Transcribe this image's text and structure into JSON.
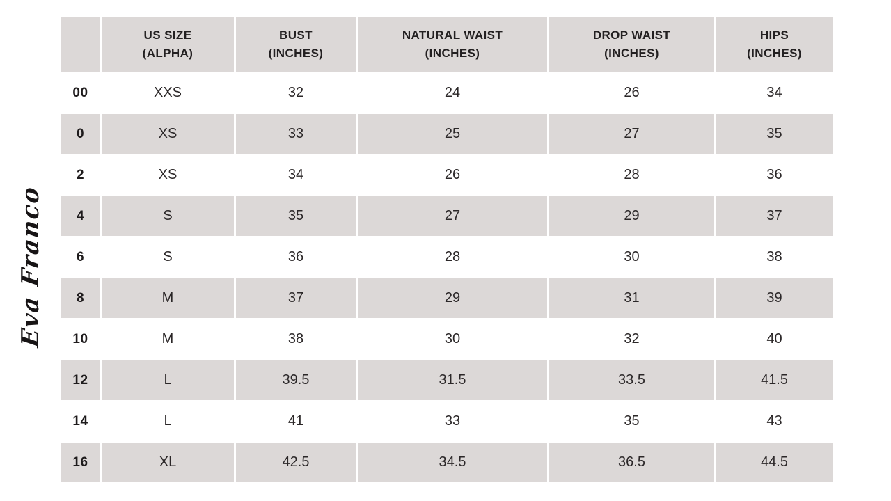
{
  "brand": {
    "logo_text": "Eva Franco"
  },
  "chart_data": {
    "type": "table",
    "headers": [
      {
        "l1": "",
        "l2": ""
      },
      {
        "l1": "US SIZE",
        "l2": "(ALPHA)"
      },
      {
        "l1": "BUST",
        "l2": "(INCHES)"
      },
      {
        "l1": "NATURAL WAIST",
        "l2": "(INCHES)"
      },
      {
        "l1": "DROP WAIST",
        "l2": "(INCHES)"
      },
      {
        "l1": "HIPS",
        "l2": "(INCHES)"
      }
    ],
    "rows": [
      [
        "00",
        "XXS",
        "32",
        "24",
        "26",
        "34"
      ],
      [
        "0",
        "XS",
        "33",
        "25",
        "27",
        "35"
      ],
      [
        "2",
        "XS",
        "34",
        "26",
        "28",
        "36"
      ],
      [
        "4",
        "S",
        "35",
        "27",
        "29",
        "37"
      ],
      [
        "6",
        "S",
        "36",
        "28",
        "30",
        "38"
      ],
      [
        "8",
        "M",
        "37",
        "29",
        "31",
        "39"
      ],
      [
        "10",
        "M",
        "38",
        "30",
        "32",
        "40"
      ],
      [
        "12",
        "L",
        "39.5",
        "31.5",
        "33.5",
        "41.5"
      ],
      [
        "14",
        "L",
        "41",
        "33",
        "35",
        "43"
      ],
      [
        "16",
        "XL",
        "42.5",
        "34.5",
        "36.5",
        "44.5"
      ]
    ]
  },
  "colors": {
    "row_alt_background": "#dcd8d7",
    "row_base_background": "#ffffff",
    "separator": "#ffffff",
    "text": "#2b2728",
    "header_text": "#232021",
    "logo_ink": "#171415"
  }
}
